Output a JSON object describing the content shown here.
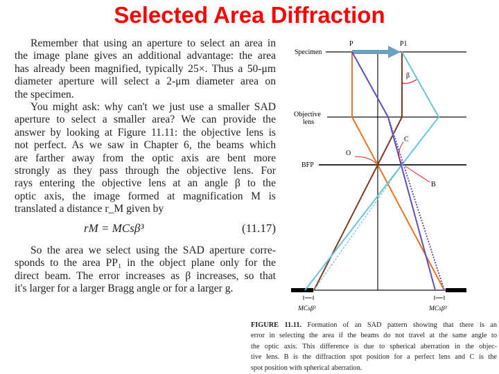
{
  "title": "Selected Area Diffraction",
  "body": {
    "para1_lines": [
      "Remember that using an aperture to select an area in",
      "the image plane gives an additional advantage: the area",
      "has already been magnified, typically 25×. Thus a 50-μm",
      "diameter aperture will select a 2-μm diameter area on",
      "the specimen."
    ],
    "para2_lines": [
      "You might ask: why can't we just use a smaller SAD",
      "aperture to select a smaller area? We can provide the",
      "answer by looking at Figure 11.11: the objective lens is",
      "not perfect. As we saw in Chapter 6, the beams which",
      "are farther away from the optic axis are bent more",
      "strongly as they pass through the objective lens. For",
      "rays entering the objective lens at an angle β to the",
      "optic axis, the image formed at magnification M is",
      "translated a distance r_M given by"
    ],
    "equation": {
      "formula": "rM = MCsβ³",
      "number": "(11.17)"
    },
    "para3_lines": [
      "So the area we select using the SAD aperture corre-",
      "sponds to the area PP₁ in the object plane only for the",
      "direct beam. The error increases as β increases, so that",
      "it's larger for a larger Bragg angle or for a larger g."
    ]
  },
  "figure": {
    "labels": {
      "specimen": "Specimen",
      "objective": "Objective",
      "lens": "lens",
      "bfp": "BFP",
      "p": "P",
      "p1": "P1",
      "beta": "β",
      "c": "C",
      "o": "O",
      "b": "B",
      "shift_left": "MCsβ³",
      "shift_right": "MCsβ³"
    },
    "colors": {
      "orange": "#e8731e",
      "brown": "#7a3b22",
      "cyan": "#6cc3d8",
      "purple": "#5a4fc0",
      "arrow": "#6f9fbf",
      "red": "#d02020"
    },
    "caption": {
      "label": "FIGURE 11.11.",
      "lines": [
        "Formation of an SAD pattern showing that there is an",
        "error in selecting the area if the beams do not travel at the same angle to",
        "the optic axis. This difference is due to spherical aberration in the objec-",
        "tive lens. B is the diffraction spot position for a perfect lens and C is the",
        "spot position with spherical aberration."
      ]
    }
  }
}
